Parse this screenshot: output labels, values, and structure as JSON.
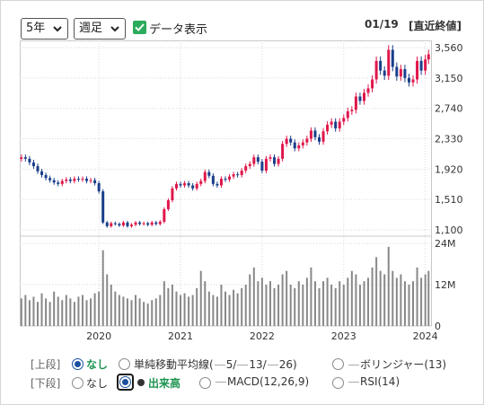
{
  "toolbar": {
    "period": "5年",
    "interval": "週足",
    "show_data_label": "データ表示",
    "show_data_checked": true,
    "date": "01/19",
    "value_mode": "[直近終値]"
  },
  "controls": {
    "upper_tag": "[上段]",
    "lower_tag": "[下段]",
    "upper_none": "なし",
    "sma": "単純移動平均線(",
    "sma_a": "5/",
    "sma_b": "13/",
    "sma_c": "26)",
    "bollinger": "ボリンジャー(13)",
    "lower_none": "なし",
    "volume": "出来高",
    "macd": "MACD(12,26,9)",
    "rsi": "RSI(14)",
    "upper_selected": "なし",
    "lower_selected": "出来高"
  },
  "colors": {
    "up": "#e0174c",
    "down": "#1a3e8a",
    "volume": "#888888",
    "grid": "#d9d9d9",
    "accent_green": "#1d9450"
  },
  "chart_data": [
    {
      "type": "candlestick",
      "title": "",
      "y_ticks": [
        "3,560",
        "3,150",
        "2,740",
        "2,330",
        "1,920",
        "1,510",
        "1,100"
      ],
      "ylim": [
        1100,
        3560
      ],
      "x_ticks": [
        "2020",
        "2021",
        "2022",
        "2023",
        "2024"
      ],
      "xlim": [
        2019.03,
        2024.07
      ],
      "grid": true,
      "x": [
        2019.05,
        2019.1,
        2019.15,
        2019.2,
        2019.25,
        2019.3,
        2019.35,
        2019.4,
        2019.45,
        2019.5,
        2019.55,
        2019.6,
        2019.65,
        2019.7,
        2019.75,
        2019.8,
        2019.85,
        2019.9,
        2019.95,
        2020.0,
        2020.05,
        2020.1,
        2020.15,
        2020.2,
        2020.25,
        2020.3,
        2020.35,
        2020.4,
        2020.45,
        2020.5,
        2020.55,
        2020.6,
        2020.65,
        2020.7,
        2020.75,
        2020.8,
        2020.85,
        2020.9,
        2020.95,
        2021.0,
        2021.05,
        2021.1,
        2021.15,
        2021.2,
        2021.25,
        2021.3,
        2021.35,
        2021.4,
        2021.45,
        2021.5,
        2021.55,
        2021.6,
        2021.65,
        2021.7,
        2021.75,
        2021.8,
        2021.85,
        2021.9,
        2021.95,
        2022.0,
        2022.05,
        2022.1,
        2022.15,
        2022.2,
        2022.25,
        2022.3,
        2022.35,
        2022.4,
        2022.45,
        2022.5,
        2022.55,
        2022.6,
        2022.65,
        2022.7,
        2022.75,
        2022.8,
        2022.85,
        2022.9,
        2022.95,
        2023.0,
        2023.05,
        2023.1,
        2023.15,
        2023.2,
        2023.25,
        2023.3,
        2023.35,
        2023.4,
        2023.45,
        2023.5,
        2023.55,
        2023.6,
        2023.65,
        2023.7,
        2023.75,
        2023.8,
        2023.85,
        2023.9,
        2023.95,
        2024.0,
        2024.04
      ],
      "close": [
        2080,
        2060,
        2010,
        1960,
        1890,
        1840,
        1800,
        1770,
        1740,
        1720,
        1760,
        1780,
        1760,
        1790,
        1780,
        1790,
        1760,
        1770,
        1730,
        1620,
        1200,
        1150,
        1190,
        1180,
        1160,
        1200,
        1150,
        1170,
        1200,
        1180,
        1190,
        1170,
        1200,
        1180,
        1210,
        1380,
        1500,
        1660,
        1720,
        1700,
        1730,
        1700,
        1660,
        1720,
        1760,
        1880,
        1830,
        1720,
        1700,
        1790,
        1780,
        1820,
        1850,
        1840,
        1900,
        1960,
        1990,
        2080,
        2020,
        1900,
        2060,
        2080,
        1990,
        2060,
        2260,
        2330,
        2280,
        2200,
        2240,
        2280,
        2330,
        2440,
        2350,
        2290,
        2430,
        2520,
        2560,
        2470,
        2560,
        2610,
        2700,
        2720,
        2900,
        2840,
        2950,
        3010,
        3130,
        3380,
        3250,
        3180,
        3530,
        3300,
        3170,
        3270,
        3150,
        3090,
        3130,
        3380,
        3250,
        3400,
        3470
      ],
      "volume_y_ticks": [
        "24M",
        "12M",
        "0"
      ],
      "volume_ylim": [
        0,
        24000000
      ],
      "volume": [
        8000000,
        9000000,
        7500000,
        8500000,
        7000000,
        9500000,
        8000000,
        7000000,
        10000000,
        8500000,
        7500000,
        9000000,
        8000000,
        7000000,
        8500000,
        9000000,
        7500000,
        8000000,
        9500000,
        10000000,
        22000000,
        15000000,
        12000000,
        10000000,
        9000000,
        8500000,
        8000000,
        7500000,
        9000000,
        8000000,
        7000000,
        6500000,
        7500000,
        8000000,
        9000000,
        13000000,
        11000000,
        12000000,
        10000000,
        9000000,
        9500000,
        8500000,
        9000000,
        11000000,
        16000000,
        13000000,
        10000000,
        9000000,
        8500000,
        12000000,
        10000000,
        9000000,
        10500000,
        9500000,
        11000000,
        12000000,
        15000000,
        17000000,
        13000000,
        14000000,
        12000000,
        13000000,
        11000000,
        12000000,
        15000000,
        16000000,
        12000000,
        11000000,
        13000000,
        12000000,
        14000000,
        17000000,
        13000000,
        11000000,
        13000000,
        14000000,
        12000000,
        11000000,
        13000000,
        12000000,
        14000000,
        16000000,
        15000000,
        12000000,
        13000000,
        14000000,
        17000000,
        20000000,
        16000000,
        15000000,
        23000000,
        16000000,
        14000000,
        15000000,
        13000000,
        12000000,
        13000000,
        17000000,
        14000000,
        15000000,
        16000000
      ]
    }
  ]
}
